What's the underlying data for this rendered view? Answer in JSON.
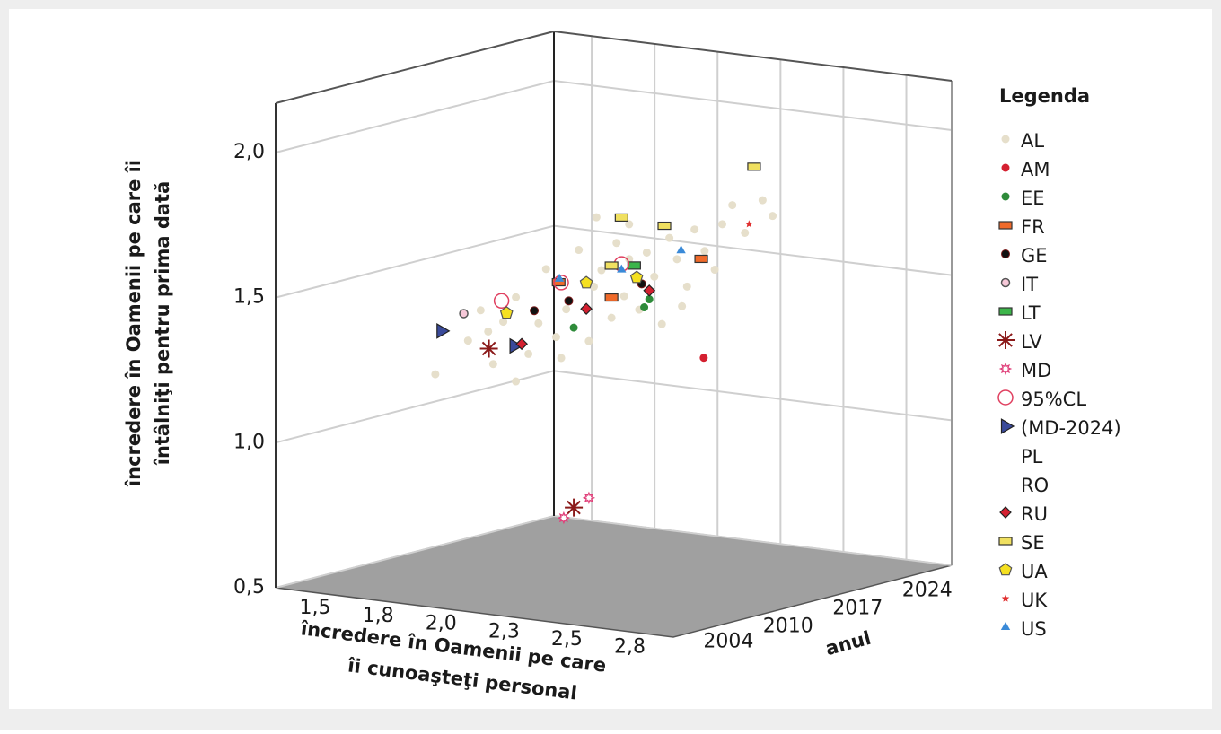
{
  "chart_data": {
    "type": "scatter3d",
    "xlabel": [
      "încredere în Oamenii pe care",
      "îi cunoaşteţi personal"
    ],
    "ylabel": "anul",
    "zlabel": [
      "încredere în Oamenii pe care îi",
      "întâlniţi pentru prima dată"
    ],
    "legend_title": "Legenda",
    "legend_position": "right",
    "grid": true,
    "xlim": [
      1.35,
      2.93
    ],
    "ylim": [
      1999,
      2027
    ],
    "zlim": [
      0.5,
      2.17
    ],
    "xticks": [
      {
        "value": 1.5,
        "label": "1,5"
      },
      {
        "value": 1.75,
        "label": "1,8"
      },
      {
        "value": 2.0,
        "label": "2,0"
      },
      {
        "value": 2.25,
        "label": "2,3"
      },
      {
        "value": 2.5,
        "label": "2,5"
      },
      {
        "value": 2.75,
        "label": "2,8"
      }
    ],
    "yticks": [
      2004,
      2010,
      2017,
      2024
    ],
    "zticks": [
      {
        "value": 0.5,
        "label": "0,5"
      },
      {
        "value": 1.0,
        "label": "1,0"
      },
      {
        "value": 1.5,
        "label": "1,5"
      },
      {
        "value": 2.0,
        "label": "2,0"
      }
    ],
    "series": [
      {
        "name": "AL",
        "color": "#e6dfcb",
        "marker": "dot",
        "x": [
          1.55,
          1.68,
          1.73,
          1.78,
          1.82,
          1.87,
          1.92,
          1.96,
          1.99,
          2.03,
          2.07,
          2.12,
          2.16,
          2.18,
          2.21,
          2.25,
          2.27,
          2.3,
          2.32,
          2.36,
          2.39,
          2.42,
          2.45,
          2.48,
          2.51,
          2.55,
          2.58,
          2.62,
          2.66,
          2.69,
          2.73,
          2.78,
          2.85,
          2.89,
          2.05,
          1.87,
          2.32,
          2.19,
          1.76,
          2.53
        ],
        "y": [
          2010,
          2010,
          2010,
          2010,
          2010,
          2010,
          2010,
          2010,
          2010,
          2010,
          2010,
          2010,
          2010,
          2010,
          2010,
          2010,
          2010,
          2010,
          2010,
          2010,
          2010,
          2010,
          2010,
          2010,
          2010,
          2010,
          2010,
          2010,
          2010,
          2010,
          2010,
          2010,
          2010,
          2010,
          2010,
          2010,
          2010,
          2010,
          2010,
          2010
        ],
        "z": [
          1.16,
          1.29,
          1.4,
          1.22,
          1.37,
          1.46,
          1.27,
          1.38,
          1.57,
          1.34,
          1.44,
          1.65,
          1.34,
          1.53,
          1.59,
          1.43,
          1.69,
          1.51,
          1.64,
          1.47,
          1.67,
          1.59,
          1.43,
          1.73,
          1.66,
          1.57,
          1.77,
          1.7,
          1.64,
          1.8,
          1.87,
          1.78,
          1.9,
          1.85,
          1.27,
          1.17,
          1.76,
          1.77,
          1.33,
          1.5
        ]
      },
      {
        "name": "AM",
        "color": "#d42030",
        "marker": "dot",
        "x": [
          2.34
        ],
        "y": [
          2017
        ],
        "z": [
          1.24
        ]
      },
      {
        "name": "EE",
        "color": "#2e8b3a",
        "marker": "dot",
        "x": [
          2.1,
          2.38,
          2.4
        ],
        "y": [
          2010,
          2010,
          2010
        ],
        "z": [
          1.38,
          1.48,
          1.51
        ]
      },
      {
        "name": "FR",
        "color": "#f06a2a",
        "marker": "rect",
        "x": [
          2.25,
          2.33,
          2.04
        ],
        "y": [
          2010,
          2017,
          2010
        ],
        "z": [
          1.5,
          1.58,
          1.53
        ]
      },
      {
        "name": "GE",
        "color": "#111111",
        "marker": "dot-ring",
        "x": [
          2.18,
          2.08,
          2.37
        ],
        "y": [
          2004,
          2010,
          2010
        ],
        "z": [
          1.5,
          1.47,
          1.56
        ]
      },
      {
        "name": "IT",
        "color": "#f6c8d8",
        "marker": "circle-open",
        "x": [
          1.9
        ],
        "y": [
          2004
        ],
        "z": [
          1.46
        ]
      },
      {
        "name": "LT",
        "color": "#3cb54a",
        "marker": "rect",
        "x": [
          2.34
        ],
        "y": [
          2010
        ],
        "z": [
          1.62
        ]
      },
      {
        "name": "LV",
        "color": "#8b1a1a",
        "marker": "asterisk",
        "x": [
          2.0,
          2.1
        ],
        "y": [
          2004,
          2010
        ],
        "z": [
          1.35,
          0.76
        ]
      },
      {
        "name": "MD",
        "color": "#e0407a",
        "marker": "sun",
        "x": [
          2.06,
          2.16
        ],
        "y": [
          2010,
          2010
        ],
        "z": [
          0.72,
          0.8
        ]
      },
      {
        "name": "95%CL",
        "color": "#e04060",
        "marker": "ring",
        "x": [
          2.05,
          2.29,
          2.05
        ],
        "y": [
          2004,
          2010,
          2010
        ],
        "z": [
          1.52,
          1.62,
          1.53
        ]
      },
      {
        "name": "(MD-2024)",
        "color": "#3a4a9a",
        "marker": "tri-right",
        "x": [
          1.81,
          2.1
        ],
        "y": [
          2004,
          2004
        ],
        "z": [
          1.39,
          1.37
        ]
      },
      {
        "name": "PL",
        "color": "#ffffff",
        "marker": "none",
        "x": [],
        "y": [],
        "z": []
      },
      {
        "name": "RO",
        "color": "#ffffff",
        "marker": "none",
        "x": [],
        "y": [],
        "z": []
      },
      {
        "name": "RU",
        "color": "#d42030",
        "marker": "diamond",
        "x": [
          2.13,
          2.15,
          2.4
        ],
        "y": [
          2004,
          2010,
          2010
        ],
        "z": [
          1.38,
          1.45,
          1.54
        ]
      },
      {
        "name": "SE",
        "color": "#f0e060",
        "marker": "rect",
        "x": [
          2.29,
          2.46,
          2.54,
          2.25
        ],
        "y": [
          2010,
          2010,
          2017,
          2010
        ],
        "z": [
          1.78,
          1.77,
          1.92,
          1.61
        ]
      },
      {
        "name": "UA",
        "color": "#f5e020",
        "marker": "pentagon",
        "x": [
          2.07,
          2.15,
          2.35
        ],
        "y": [
          2004,
          2010,
          2010
        ],
        "z": [
          1.48,
          1.54,
          1.58
        ]
      },
      {
        "name": "UK",
        "color": "#e03030",
        "marker": "star",
        "x": [
          2.52
        ],
        "y": [
          2017
        ],
        "z": [
          1.72
        ]
      },
      {
        "name": "US",
        "color": "#3a8ad8",
        "marker": "tri-up",
        "x": [
          2.25,
          2.28,
          2.29
        ],
        "y": [
          2017,
          2004,
          2010
        ],
        "z": [
          1.6,
          1.62,
          1.6
        ]
      }
    ]
  }
}
